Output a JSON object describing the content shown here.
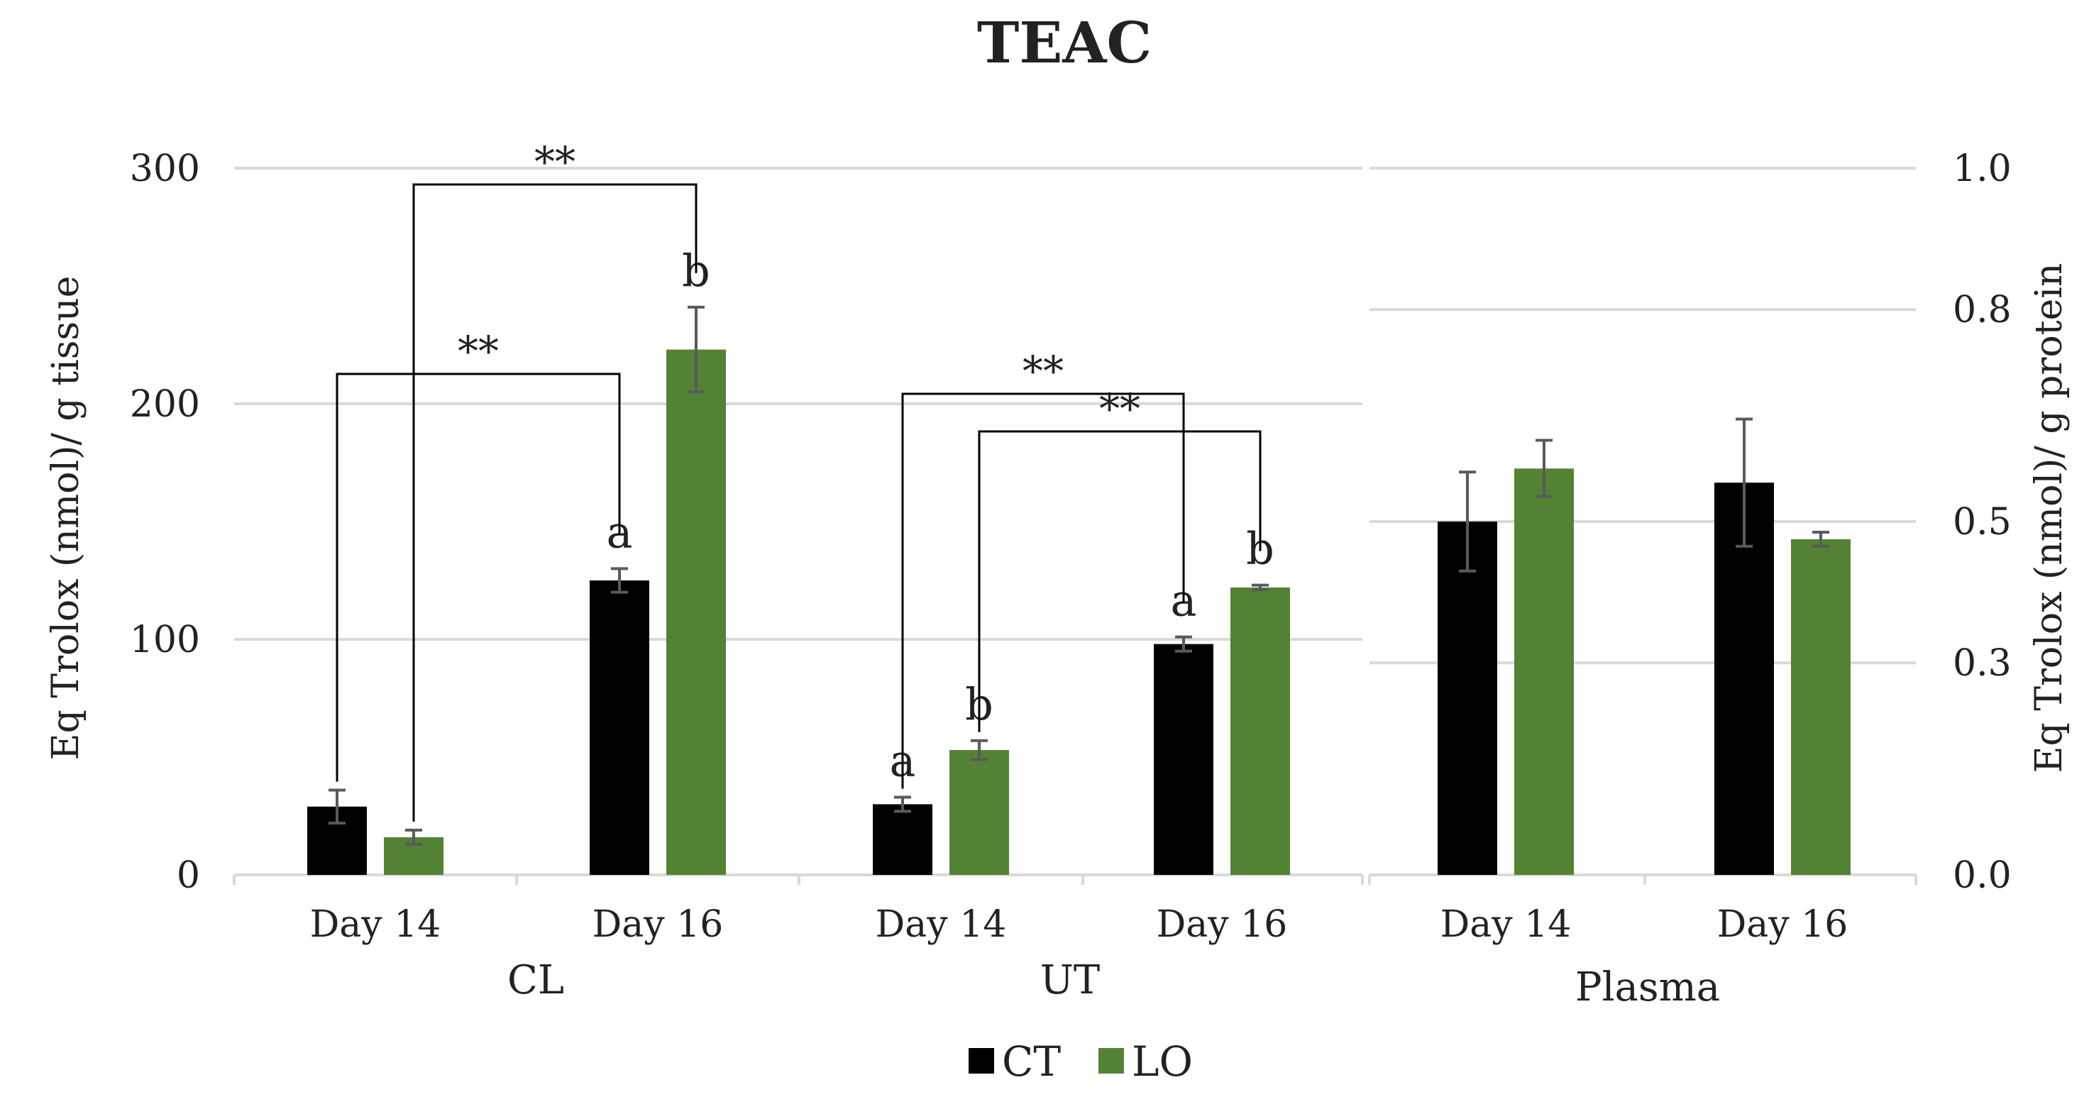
{
  "chart_data": {
    "type": "bar",
    "title": "TEAC",
    "colors": {
      "CT": "#000000",
      "LO": "#548235",
      "grid": "#d9d9d9",
      "error": "#5a5a5a",
      "bracket": "#000000"
    },
    "legend": {
      "placement": "bottom",
      "entries": [
        "CT",
        "LO"
      ]
    },
    "left_axis": {
      "label": "Eq Trolox (nmol)/ g tissue",
      "ylim": [
        0,
        300
      ],
      "ticks": [
        0,
        100,
        200,
        300
      ]
    },
    "right_axis": {
      "label": "Eq Trolox (nmol)/ g protein",
      "ylim": [
        0,
        1.0
      ],
      "ticks": [
        0.0,
        0.3,
        0.5,
        0.8,
        1.0
      ],
      "tick_labels": [
        "0.0",
        "0.3",
        "0.5",
        "0.8",
        "1.0"
      ]
    },
    "groups": [
      {
        "name": "CL",
        "axis": "left",
        "categories": [
          {
            "label": "Day 14",
            "series": [
              {
                "name": "CT",
                "value": 29,
                "error": 7
              },
              {
                "name": "LO",
                "value": 16,
                "error": 3
              }
            ]
          },
          {
            "label": "Day 16",
            "series": [
              {
                "name": "CT",
                "value": 125,
                "error": 5,
                "letter": "a"
              },
              {
                "name": "LO",
                "value": 223,
                "error": 18,
                "letter": "b"
              }
            ]
          }
        ],
        "significance": [
          {
            "label": "**",
            "from": [
              0,
              0
            ],
            "to": [
              1,
              0
            ]
          },
          {
            "label": "**",
            "from": [
              0,
              1
            ],
            "to": [
              1,
              1
            ]
          }
        ]
      },
      {
        "name": "UT",
        "axis": "left",
        "categories": [
          {
            "label": "Day 14",
            "series": [
              {
                "name": "CT",
                "value": 30,
                "error": 3,
                "letter": "a"
              },
              {
                "name": "LO",
                "value": 53,
                "error": 4,
                "letter": "b"
              }
            ]
          },
          {
            "label": "Day 16",
            "series": [
              {
                "name": "CT",
                "value": 98,
                "error": 3,
                "letter": "a"
              },
              {
                "name": "LO",
                "value": 122,
                "error": 1,
                "letter": "b"
              }
            ]
          }
        ],
        "significance": [
          {
            "label": "**",
            "from": [
              0,
              0
            ],
            "to": [
              1,
              0
            ]
          },
          {
            "label": "**",
            "from": [
              0,
              1
            ],
            "to": [
              1,
              1
            ]
          }
        ]
      },
      {
        "name": "Plasma",
        "axis": "right",
        "categories": [
          {
            "label": "Day 14",
            "series": [
              {
                "name": "CT",
                "value": 0.5,
                "error": 0.07
              },
              {
                "name": "LO",
                "value": 0.575,
                "error": 0.04
              }
            ]
          },
          {
            "label": "Day 16",
            "series": [
              {
                "name": "CT",
                "value": 0.555,
                "error": 0.09
              },
              {
                "name": "LO",
                "value": 0.475,
                "error": 0.01
              }
            ]
          }
        ],
        "significance": []
      }
    ]
  }
}
